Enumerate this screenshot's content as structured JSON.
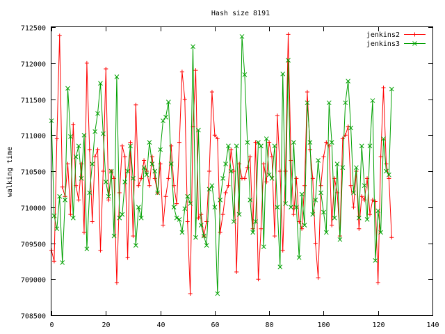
{
  "chart_data": {
    "type": "line",
    "title": "Hash size 8191",
    "xlabel": "",
    "ylabel": "walking time",
    "xlim": [
      0,
      140
    ],
    "ylim": [
      708500,
      712500
    ],
    "xticks": [
      0,
      20,
      40,
      60,
      80,
      100,
      120,
      140
    ],
    "yticks": [
      708500,
      709000,
      709500,
      710000,
      710500,
      711000,
      711500,
      712000,
      712500
    ],
    "grid": false,
    "legend": "top-right",
    "series": [
      {
        "name": "jenkins2",
        "color": "#ff0000",
        "marker": "plus",
        "x": [
          0,
          1,
          2,
          3,
          4,
          5,
          6,
          7,
          8,
          9,
          10,
          11,
          12,
          13,
          14,
          15,
          16,
          17,
          18,
          19,
          20,
          21,
          22,
          23,
          24,
          25,
          26,
          27,
          28,
          29,
          30,
          31,
          32,
          33,
          34,
          35,
          36,
          37,
          38,
          39,
          40,
          41,
          42,
          43,
          44,
          45,
          46,
          47,
          48,
          49,
          50,
          51,
          52,
          53,
          54,
          55,
          56,
          57,
          58,
          59,
          60,
          61,
          62,
          63,
          64,
          65,
          66,
          67,
          68,
          69,
          70,
          71,
          72,
          73,
          74,
          75,
          76,
          77,
          78,
          79,
          80,
          81,
          82,
          83,
          84,
          85,
          86,
          87,
          88,
          89,
          90,
          91,
          92,
          93,
          94,
          95,
          96,
          97,
          98,
          99,
          100,
          101,
          102,
          103,
          104,
          105,
          106,
          107,
          108,
          109,
          110,
          111,
          112,
          113,
          114,
          115,
          116,
          117,
          118,
          119,
          120,
          121,
          122,
          123,
          124,
          125
        ],
        "y": [
          709400,
          709250,
          710950,
          712380,
          710280,
          710150,
          710600,
          709900,
          711150,
          710300,
          710100,
          710600,
          709650,
          712000,
          710800,
          709800,
          710700,
          710800,
          709400,
          710500,
          711920,
          710100,
          710500,
          710400,
          708950,
          710200,
          710850,
          710700,
          709300,
          710900,
          709600,
          711420,
          710300,
          710400,
          710650,
          710500,
          710300,
          710700,
          710400,
          710200,
          710600,
          709750,
          710150,
          710400,
          710850,
          710300,
          710050,
          710900,
          711880,
          711500,
          709800,
          708800,
          711120,
          711900,
          709850,
          709900,
          709600,
          709800,
          710500,
          711600,
          711000,
          710950,
          709650,
          709900,
          710200,
          710300,
          710800,
          710500,
          709100,
          710600,
          710400,
          710400,
          710550,
          710700,
          709700,
          710900,
          709000,
          709700,
          710600,
          710350,
          710900,
          710700,
          709600,
          711270,
          710500,
          709400,
          710500,
          712400,
          710650,
          709900,
          710400,
          709800,
          709700,
          710300,
          711600,
          710800,
          710400,
          709500,
          709020,
          710300,
          710700,
          710900,
          710850,
          709750,
          710400,
          710200,
          709600,
          710950,
          711000,
          711120,
          710300,
          710000,
          710500,
          709700,
          710150,
          710100,
          710400,
          709900,
          710100,
          710080,
          708950,
          710700,
          711660,
          710600,
          710400,
          709580
        ]
      },
      {
        "name": "jenkins3",
        "color": "#00a000",
        "marker": "x",
        "x": [
          0,
          1,
          2,
          3,
          4,
          5,
          6,
          7,
          8,
          9,
          10,
          11,
          12,
          13,
          14,
          15,
          16,
          17,
          18,
          19,
          20,
          21,
          22,
          23,
          24,
          25,
          26,
          27,
          28,
          29,
          30,
          31,
          32,
          33,
          34,
          35,
          36,
          37,
          38,
          39,
          40,
          41,
          42,
          43,
          44,
          45,
          46,
          47,
          48,
          49,
          50,
          51,
          52,
          53,
          54,
          55,
          56,
          57,
          58,
          59,
          60,
          61,
          62,
          63,
          64,
          65,
          66,
          67,
          68,
          69,
          70,
          71,
          72,
          73,
          74,
          75,
          76,
          77,
          78,
          79,
          80,
          81,
          82,
          83,
          84,
          85,
          86,
          87,
          88,
          89,
          90,
          91,
          92,
          93,
          94,
          95,
          96,
          97,
          98,
          99,
          100,
          101,
          102,
          103,
          104,
          105,
          106,
          107,
          108,
          109,
          110,
          111,
          112,
          113,
          114,
          115,
          116,
          117,
          118,
          119,
          120,
          121,
          122,
          123,
          124,
          125
        ],
        "y": [
          711200,
          709880,
          709700,
          710150,
          709230,
          710100,
          711650,
          710980,
          709850,
          710700,
          710850,
          710400,
          711000,
          709420,
          710200,
          710600,
          711050,
          711300,
          711720,
          711020,
          710350,
          710150,
          710500,
          709600,
          711810,
          709850,
          709900,
          710350,
          710500,
          710850,
          710400,
          709470,
          710000,
          709850,
          710550,
          710450,
          710900,
          710600,
          710500,
          710200,
          710800,
          711200,
          711250,
          711460,
          710600,
          710000,
          709850,
          709830,
          709650,
          709980,
          710150,
          710050,
          712230,
          709580,
          711070,
          709750,
          709600,
          709470,
          710250,
          710300,
          710000,
          708800,
          710100,
          710400,
          710600,
          710850,
          710500,
          709800,
          710850,
          709900,
          712370,
          711840,
          710900,
          710100,
          709650,
          709800,
          710900,
          710850,
          709450,
          710950,
          710450,
          710400,
          710850,
          710000,
          709170,
          711850,
          710050,
          712040,
          710000,
          710900,
          710000,
          709300,
          710180,
          709750,
          711450,
          710900,
          709900,
          710100,
          710650,
          710200,
          709930,
          709650,
          711450,
          710900,
          709850,
          710600,
          709550,
          710550,
          711450,
          711750,
          711100,
          710200,
          710550,
          709850,
          710850,
          710300,
          709830,
          710850,
          711480,
          709260,
          709950,
          709650,
          710950,
          710500,
          710450,
          711640
        ]
      }
    ]
  }
}
